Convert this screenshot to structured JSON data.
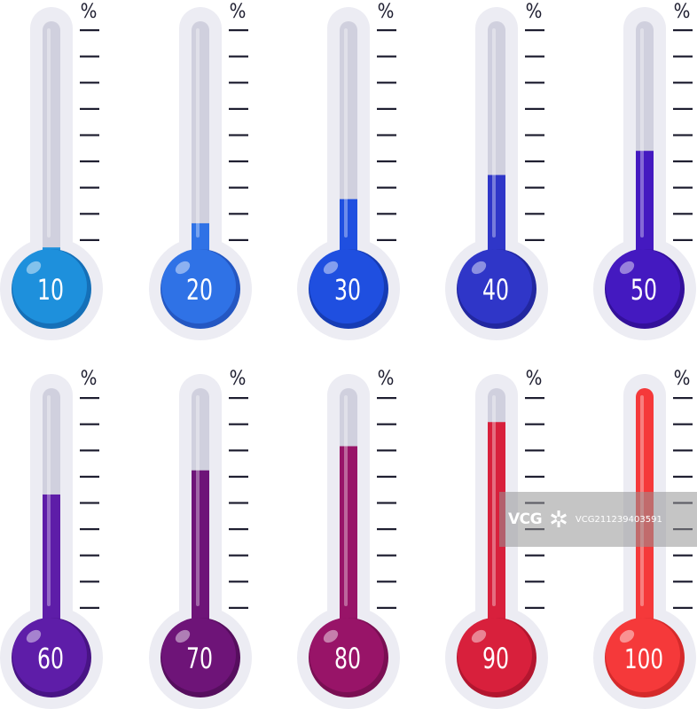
{
  "unit_label": "%",
  "thermometers": [
    {
      "label": "10",
      "level": 0.1,
      "color": "#1E90DC",
      "dark": "#1570B8"
    },
    {
      "label": "20",
      "level": 0.2,
      "color": "#2F72E6",
      "dark": "#2457C2"
    },
    {
      "label": "30",
      "level": 0.3,
      "color": "#1F4FE0",
      "dark": "#163CB4"
    },
    {
      "label": "40",
      "level": 0.4,
      "color": "#2F36C8",
      "dark": "#2227A0"
    },
    {
      "label": "50",
      "level": 0.5,
      "color": "#4419C0",
      "dark": "#33109A"
    },
    {
      "label": "60",
      "level": 0.6,
      "color": "#5E1DA8",
      "dark": "#481485"
    },
    {
      "label": "70",
      "level": 0.7,
      "color": "#6E1478",
      "dark": "#560E5E"
    },
    {
      "label": "80",
      "level": 0.8,
      "color": "#981468",
      "dark": "#7A0F53"
    },
    {
      "label": "90",
      "level": 0.9,
      "color": "#D8203C",
      "dark": "#B3162F"
    },
    {
      "label": "100",
      "level": 1.0,
      "color": "#F5393A",
      "dark": "#D52A2B"
    }
  ],
  "colors": {
    "frame": "#ECECF3",
    "tube": "#D0D0DE",
    "tick": "#1E1E30",
    "number": "#FFFFFF"
  },
  "watermark": {
    "logo": "VCG",
    "id": "VCG211239403591"
  }
}
